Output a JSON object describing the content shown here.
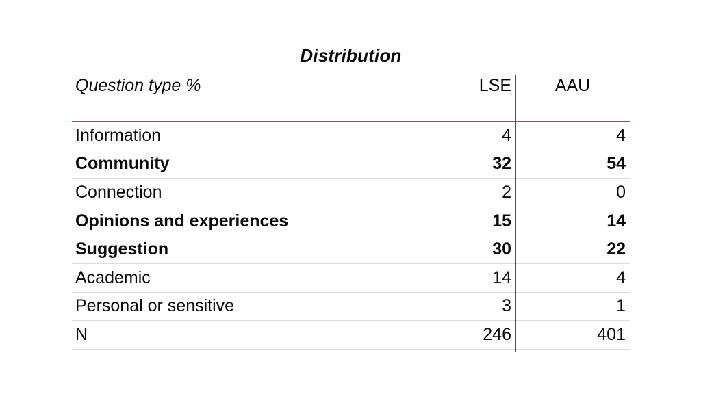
{
  "title": "Distribution",
  "table": {
    "header": {
      "question_type": "Question type %",
      "lse": "LSE",
      "aau": "AAU"
    },
    "rows": [
      {
        "label": "Information",
        "lse": "4",
        "aau": "4",
        "bold": false
      },
      {
        "label": "Community",
        "lse": "32",
        "aau": "54",
        "bold": true
      },
      {
        "label": "Connection",
        "lse": "2",
        "aau": "0",
        "bold": false
      },
      {
        "label": "Opinions and experiences",
        "lse": "15",
        "aau": "14",
        "bold": true
      },
      {
        "label": "Suggestion",
        "lse": "30",
        "aau": "22",
        "bold": true
      },
      {
        "label": "Academic",
        "lse": "14",
        "aau": "4",
        "bold": false
      },
      {
        "label": "Personal or sensitive",
        "lse": "3",
        "aau": "1",
        "bold": false
      },
      {
        "label": "N",
        "lse": "246",
        "aau": "401",
        "bold": false
      }
    ]
  },
  "chart_data": {
    "type": "table",
    "title": "Distribution",
    "columns": [
      "Question type %",
      "LSE",
      "AAU"
    ],
    "rows": [
      [
        "Information",
        4,
        4
      ],
      [
        "Community",
        32,
        54
      ],
      [
        "Connection",
        2,
        0
      ],
      [
        "Opinions and experiences",
        15,
        14
      ],
      [
        "Suggestion",
        30,
        22
      ],
      [
        "Academic",
        14,
        4
      ],
      [
        "Personal or sensitive",
        3,
        1
      ],
      [
        "N",
        246,
        401
      ]
    ]
  },
  "colors": {
    "accent_rule": "#9E4C63",
    "column_divider": "#4d4d4d",
    "row_separator": "#dcdcdc",
    "text": "#0a0a0a",
    "background": "#ffffff"
  }
}
